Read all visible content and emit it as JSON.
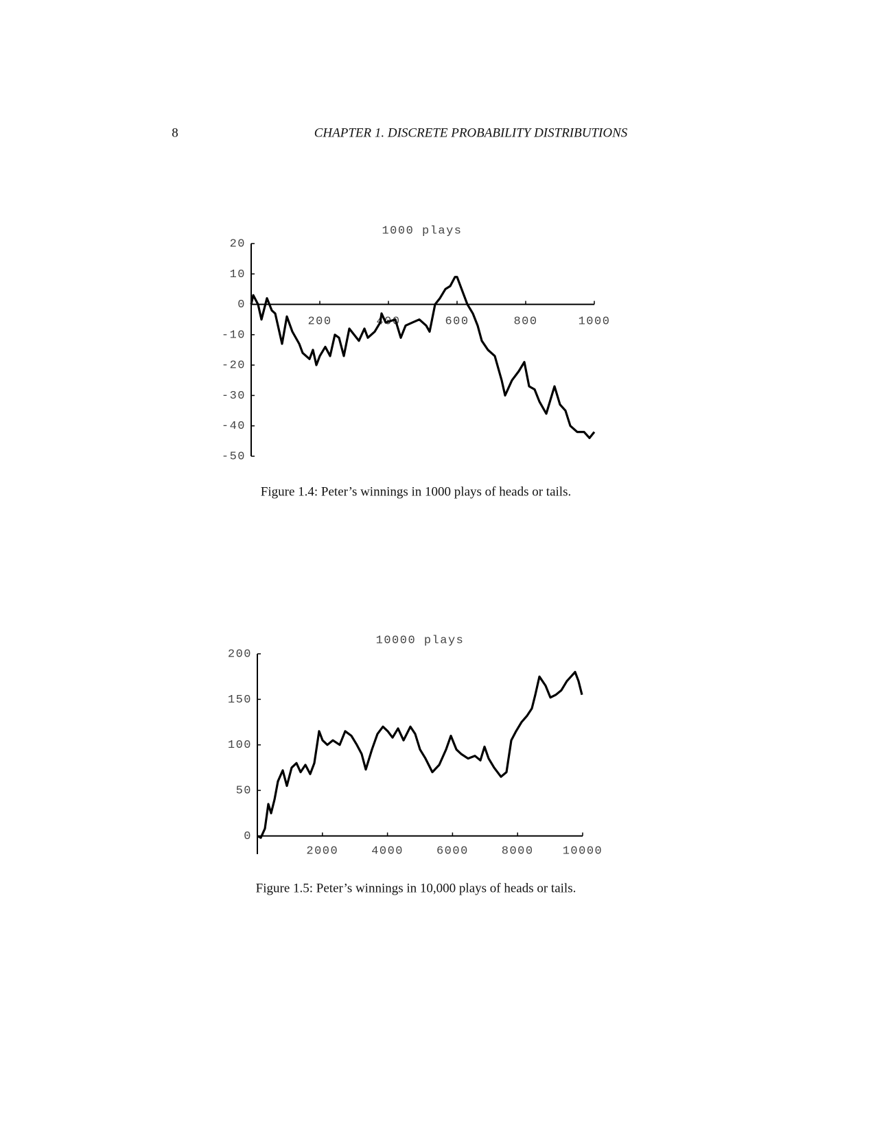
{
  "header": {
    "page_number": "8",
    "running_title": "CHAPTER 1.  DISCRETE PROBABILITY DISTRIBUTIONS"
  },
  "chart_data": [
    {
      "type": "line",
      "title": "1000 plays",
      "caption": "Figure 1.4: Peter’s winnings in 1000 plays of heads or tails.",
      "x": [
        0,
        6,
        20,
        30,
        46,
        60,
        70,
        80,
        90,
        104,
        120,
        140,
        150,
        170,
        180,
        190,
        200,
        216,
        230,
        244,
        256,
        270,
        286,
        300,
        314,
        330,
        340,
        360,
        376,
        380,
        392,
        420,
        436,
        450,
        470,
        490,
        510,
        520,
        536,
        550,
        566,
        580,
        594,
        600,
        620,
        630,
        646,
        660,
        672,
        690,
        710,
        730,
        740,
        760,
        780,
        796,
        810,
        826,
        840,
        860,
        884,
        900,
        916,
        930,
        950,
        970,
        986,
        1000
      ],
      "series": [
        {
          "color": "#000000",
          "values": [
            0,
            3,
            0,
            -5,
            2,
            -2,
            -3,
            -8,
            -13,
            -4,
            -9,
            -13,
            -16,
            -18,
            -15,
            -20,
            -17,
            -14,
            -17,
            -10,
            -11,
            -17,
            -8,
            -10,
            -12,
            -8,
            -11,
            -9,
            -6,
            -3,
            -6,
            -5,
            -11,
            -7,
            -6,
            -5,
            -7,
            -9,
            0,
            2,
            5,
            6,
            9,
            9,
            3,
            0,
            -3,
            -7,
            -12,
            -15,
            -17,
            -25,
            -30,
            -25,
            -22,
            -19,
            -27,
            -28,
            -32,
            -36,
            -27,
            -33,
            -35,
            -40,
            -42,
            -42,
            -44,
            -42
          ]
        }
      ],
      "xlim": [
        0,
        1000
      ],
      "ylim": [
        -50,
        20
      ],
      "xticks": [
        200,
        400,
        600,
        800,
        1000
      ],
      "yticks": [
        -50,
        -40,
        -30,
        -20,
        -10,
        0,
        10,
        20
      ]
    },
    {
      "type": "line",
      "title": "10000 plays",
      "caption": "Figure 1.5: Peter’s winnings in 10,000 plays of heads or tails.",
      "x": [
        0,
        105,
        232,
        338,
        422,
        527,
        633,
        781,
        907,
        1055,
        1203,
        1329,
        1477,
        1624,
        1751,
        1899,
        2004,
        2152,
        2321,
        2532,
        2700,
        2890,
        3059,
        3207,
        3333,
        3523,
        3692,
        3861,
        4008,
        4156,
        4325,
        4494,
        4705,
        4852,
        5000,
        5169,
        5380,
        5591,
        5802,
        5949,
        6118,
        6266,
        6477,
        6688,
        6857,
        6983,
        7110,
        7278,
        7489,
        7658,
        7806,
        7954,
        8122,
        8291,
        8439,
        8544,
        8671,
        8861,
        9008,
        9177,
        9346,
        9515,
        9641,
        9768,
        9873,
        9979
      ],
      "series": [
        {
          "color": "#000000",
          "values": [
            0,
            -2,
            8,
            35,
            25,
            40,
            60,
            72,
            55,
            75,
            80,
            70,
            78,
            68,
            80,
            115,
            105,
            100,
            105,
            100,
            115,
            110,
            100,
            90,
            73,
            95,
            112,
            120,
            115,
            108,
            118,
            105,
            120,
            112,
            95,
            85,
            70,
            78,
            95,
            110,
            95,
            90,
            85,
            88,
            83,
            98,
            85,
            75,
            65,
            70,
            105,
            115,
            125,
            132,
            140,
            155,
            175,
            165,
            152,
            155,
            160,
            170,
            175,
            180,
            170,
            155
          ]
        }
      ],
      "xlim": [
        0,
        10000
      ],
      "ylim": [
        -20,
        200
      ],
      "xticks": [
        2000,
        4000,
        6000,
        8000,
        10000
      ],
      "yticks": [
        0,
        50,
        100,
        150,
        200
      ]
    }
  ]
}
